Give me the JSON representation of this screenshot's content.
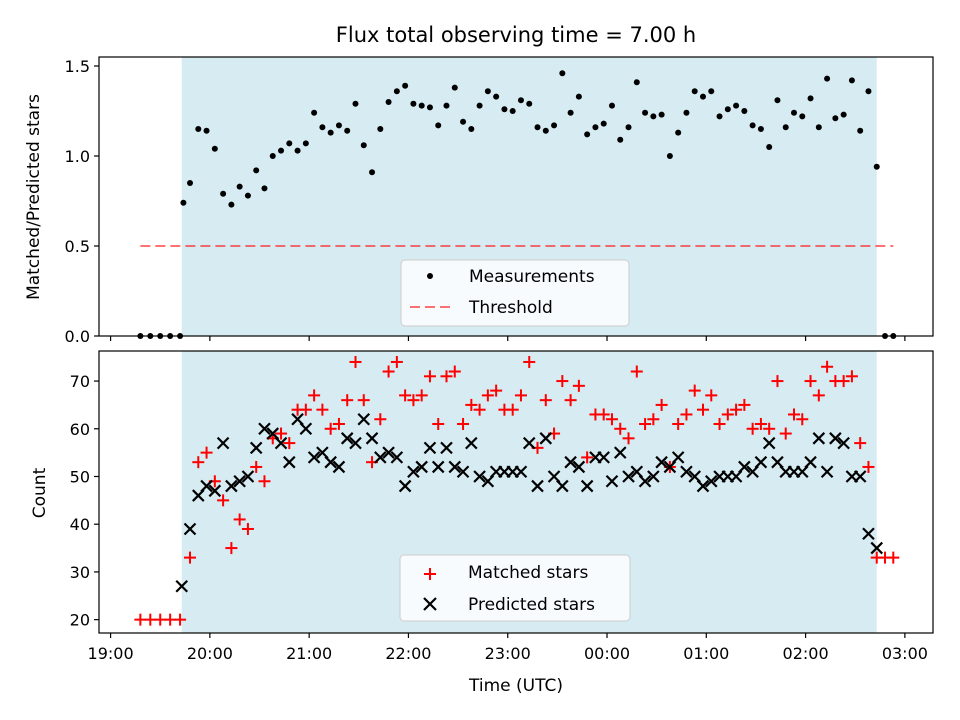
{
  "title": "Flux total observing time = 7.00 h",
  "xlabel": "Time (UTC)",
  "x_ticks": [
    "19:00",
    "20:00",
    "21:00",
    "22:00",
    "23:00",
    "00:00",
    "01:00",
    "02:00",
    "03:00"
  ],
  "colors": {
    "span": "#add8e6",
    "measure": "#000000",
    "threshold": "#ff0000",
    "matched": "#ff0000",
    "predicted": "#000000"
  },
  "chart_data": [
    {
      "type": "scatter",
      "ylabel": "Matched/Predicted stars",
      "ylim": [
        0,
        1.55
      ],
      "xlim": [
        "18:53",
        "03:17"
      ],
      "y_ticks": [
        "0.0",
        "0.5",
        "1.0",
        "1.5"
      ],
      "shaded_span": [
        "19:43",
        "02:43"
      ],
      "threshold": {
        "name": "Threshold",
        "value": 0.5,
        "x_range": [
          "19:18",
          "02:53"
        ]
      },
      "legend": {
        "placement": "lower-center",
        "entries": [
          "Measurements",
          "Threshold"
        ]
      },
      "series": [
        {
          "name": "Measurements",
          "x": [
            "19:18",
            "19:24",
            "19:30",
            "19:36",
            "19:42",
            "19:44",
            "19:48",
            "19:53",
            "19:58",
            "20:03",
            "20:08",
            "20:13",
            "20:18",
            "20:23",
            "20:28",
            "20:33",
            "20:38",
            "20:43",
            "20:48",
            "20:53",
            "20:58",
            "21:03",
            "21:08",
            "21:13",
            "21:18",
            "21:23",
            "21:28",
            "21:33",
            "21:38",
            "21:43",
            "21:48",
            "21:53",
            "21:58",
            "22:03",
            "22:08",
            "22:13",
            "22:18",
            "22:23",
            "22:28",
            "22:33",
            "22:38",
            "22:43",
            "22:48",
            "22:53",
            "22:58",
            "23:03",
            "23:08",
            "23:13",
            "23:18",
            "23:23",
            "23:28",
            "23:33",
            "23:38",
            "23:43",
            "23:48",
            "23:53",
            "23:58",
            "00:03",
            "00:08",
            "00:13",
            "00:18",
            "00:23",
            "00:28",
            "00:33",
            "00:38",
            "00:43",
            "00:48",
            "00:53",
            "00:58",
            "01:03",
            "01:08",
            "01:13",
            "01:18",
            "01:23",
            "01:28",
            "01:33",
            "01:38",
            "01:43",
            "01:48",
            "01:53",
            "01:58",
            "02:03",
            "02:08",
            "02:13",
            "02:18",
            "02:23",
            "02:28",
            "02:33",
            "02:38",
            "02:43",
            "02:48",
            "02:53"
          ],
          "y": [
            0,
            0,
            0,
            0,
            0,
            0.74,
            0.85,
            1.15,
            1.14,
            1.04,
            0.79,
            0.73,
            0.83,
            0.78,
            0.92,
            0.82,
            1.0,
            1.03,
            1.07,
            1.03,
            1.07,
            1.24,
            1.16,
            1.13,
            1.17,
            1.14,
            1.29,
            1.06,
            0.91,
            1.15,
            1.3,
            1.36,
            1.39,
            1.29,
            1.28,
            1.27,
            1.17,
            1.28,
            1.38,
            1.19,
            1.15,
            1.28,
            1.36,
            1.33,
            1.26,
            1.25,
            1.31,
            1.29,
            1.16,
            1.14,
            1.17,
            1.46,
            1.24,
            1.33,
            1.12,
            1.16,
            1.18,
            1.28,
            1.09,
            1.16,
            1.41,
            1.24,
            1.22,
            1.23,
            1.0,
            1.13,
            1.24,
            1.36,
            1.33,
            1.36,
            1.22,
            1.26,
            1.28,
            1.25,
            1.17,
            1.15,
            1.05,
            1.31,
            1.16,
            1.24,
            1.22,
            1.32,
            1.16,
            1.43,
            1.21,
            1.23,
            1.42,
            1.14,
            1.36,
            0.94,
            0,
            0
          ]
        }
      ]
    },
    {
      "type": "scatter",
      "ylabel": "Count",
      "ylim": [
        17.2,
        76.3
      ],
      "xlim": [
        "18:53",
        "03:17"
      ],
      "y_ticks": [
        "20",
        "30",
        "40",
        "50",
        "60",
        "70"
      ],
      "shaded_span": [
        "19:43",
        "02:43"
      ],
      "legend": {
        "placement": "lower-center",
        "entries": [
          "Matched stars",
          "Predicted stars"
        ]
      },
      "series": [
        {
          "name": "Matched stars",
          "x": [
            "19:18",
            "19:24",
            "19:30",
            "19:36",
            "19:42",
            "19:48",
            "19:53",
            "19:58",
            "20:03",
            "20:08",
            "20:13",
            "20:18",
            "20:23",
            "20:28",
            "20:33",
            "20:38",
            "20:43",
            "20:48",
            "20:53",
            "20:58",
            "21:03",
            "21:08",
            "21:13",
            "21:18",
            "21:23",
            "21:28",
            "21:33",
            "21:38",
            "21:43",
            "21:48",
            "21:53",
            "21:58",
            "22:03",
            "22:08",
            "22:13",
            "22:18",
            "22:23",
            "22:28",
            "22:33",
            "22:38",
            "22:43",
            "22:48",
            "22:53",
            "22:58",
            "23:03",
            "23:08",
            "23:13",
            "23:18",
            "23:23",
            "23:28",
            "23:33",
            "23:38",
            "23:43",
            "23:48",
            "23:53",
            "23:58",
            "00:03",
            "00:08",
            "00:13",
            "00:18",
            "00:23",
            "00:28",
            "00:33",
            "00:38",
            "00:43",
            "00:48",
            "00:53",
            "00:58",
            "01:03",
            "01:08",
            "01:13",
            "01:18",
            "01:23",
            "01:28",
            "01:33",
            "01:38",
            "01:43",
            "01:48",
            "01:53",
            "01:58",
            "02:03",
            "02:08",
            "02:13",
            "02:18",
            "02:23",
            "02:28",
            "02:33",
            "02:38",
            "02:43",
            "02:48",
            "02:53"
          ],
          "y": [
            20,
            20,
            20,
            20,
            20,
            33,
            53,
            55,
            49,
            45,
            35,
            41,
            39,
            52,
            49,
            58,
            59,
            57,
            64,
            64,
            67,
            64,
            60,
            61,
            66,
            74,
            66,
            53,
            62,
            72,
            74,
            67,
            66,
            67,
            71,
            61,
            71,
            72,
            61,
            65,
            64,
            67,
            68,
            64,
            64,
            67,
            74,
            56,
            66,
            59,
            70,
            66,
            69,
            54,
            63,
            63,
            62,
            60,
            58,
            72,
            61,
            62,
            65,
            52,
            61,
            63,
            68,
            64,
            67,
            61,
            63,
            64,
            65,
            60,
            61,
            60,
            70,
            59,
            63,
            62,
            70,
            67,
            73,
            70,
            70,
            71,
            57,
            52,
            33,
            33,
            33
          ]
        },
        {
          "name": "Predicted stars",
          "x": [
            "19:43",
            "19:48",
            "19:53",
            "19:58",
            "20:03",
            "20:08",
            "20:13",
            "20:18",
            "20:23",
            "20:28",
            "20:33",
            "20:38",
            "20:43",
            "20:48",
            "20:53",
            "20:58",
            "21:03",
            "21:08",
            "21:13",
            "21:18",
            "21:23",
            "21:28",
            "21:33",
            "21:38",
            "21:43",
            "21:48",
            "21:53",
            "21:58",
            "22:03",
            "22:08",
            "22:13",
            "22:18",
            "22:23",
            "22:28",
            "22:33",
            "22:38",
            "22:43",
            "22:48",
            "22:53",
            "22:58",
            "23:03",
            "23:08",
            "23:13",
            "23:18",
            "23:23",
            "23:28",
            "23:33",
            "23:38",
            "23:43",
            "23:48",
            "23:53",
            "23:58",
            "00:03",
            "00:08",
            "00:13",
            "00:18",
            "00:23",
            "00:28",
            "00:33",
            "00:38",
            "00:43",
            "00:48",
            "00:53",
            "00:58",
            "01:03",
            "01:08",
            "01:13",
            "01:18",
            "01:23",
            "01:28",
            "01:33",
            "01:38",
            "01:43",
            "01:48",
            "01:53",
            "01:58",
            "02:03",
            "02:08",
            "02:13",
            "02:18",
            "02:23",
            "02:28",
            "02:33",
            "02:38",
            "02:43",
            "02:48"
          ],
          "y": [
            27,
            39,
            46,
            48,
            47,
            57,
            48,
            49,
            50,
            56,
            60,
            59,
            57,
            53,
            62,
            60,
            54,
            55,
            53,
            52,
            58,
            57,
            62,
            58,
            54,
            55,
            54,
            48,
            51,
            52,
            56,
            52,
            56,
            52,
            51,
            57,
            50,
            49,
            51,
            51,
            51,
            51,
            57,
            48,
            58,
            50,
            48,
            53,
            52,
            48,
            54,
            54,
            49,
            55,
            50,
            51,
            49,
            50,
            53,
            52,
            54,
            51,
            50,
            48,
            49,
            50,
            50,
            50,
            52,
            51,
            53,
            57,
            53,
            51,
            51,
            51,
            53,
            58,
            51,
            58,
            57,
            50,
            50,
            38,
            35,
            null
          ]
        }
      ]
    }
  ]
}
